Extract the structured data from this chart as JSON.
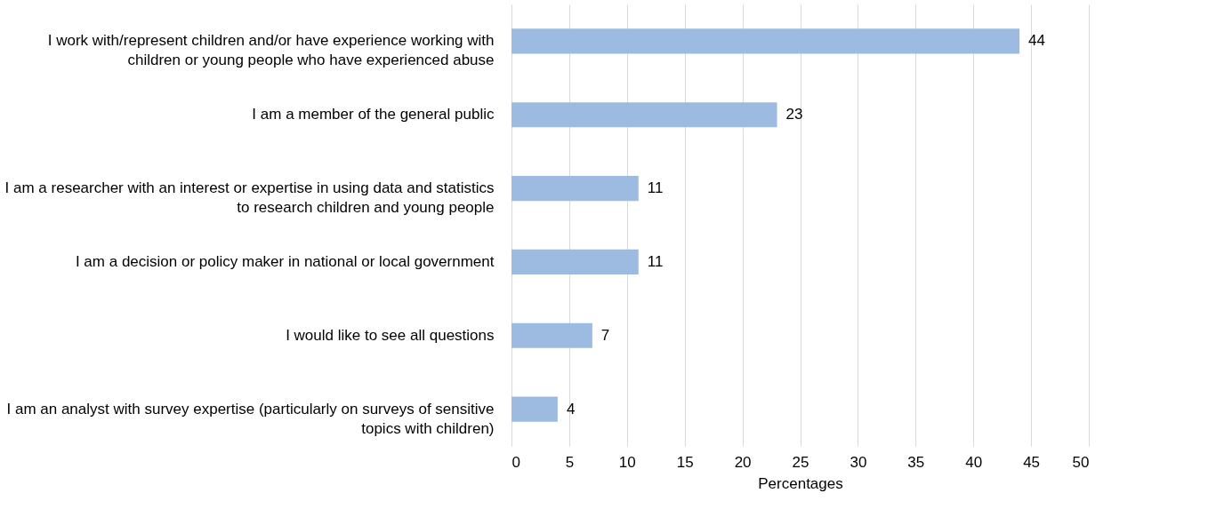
{
  "chart_data": {
    "type": "bar",
    "orientation": "horizontal",
    "xlabel": "Percentages",
    "categories": [
      "I work with/represent children and/or have experience working with children or young people who have experienced abuse",
      "I am a member of the general public",
      "I am a researcher with an interest or expertise in using data and statistics to research children and young people",
      "I am a decision or policy maker in national or local government",
      "I would like to see all questions",
      "I am an analyst with survey expertise (particularly on surveys of sensitive topics with children)"
    ],
    "values": [
      44,
      23,
      11,
      11,
      7,
      4
    ],
    "color": "#9dbbe0",
    "xlim": [
      0,
      50
    ],
    "xticks": [
      0,
      5,
      10,
      15,
      20,
      25,
      30,
      35,
      40,
      45,
      50
    ],
    "grid": "x",
    "data_labels": true
  }
}
